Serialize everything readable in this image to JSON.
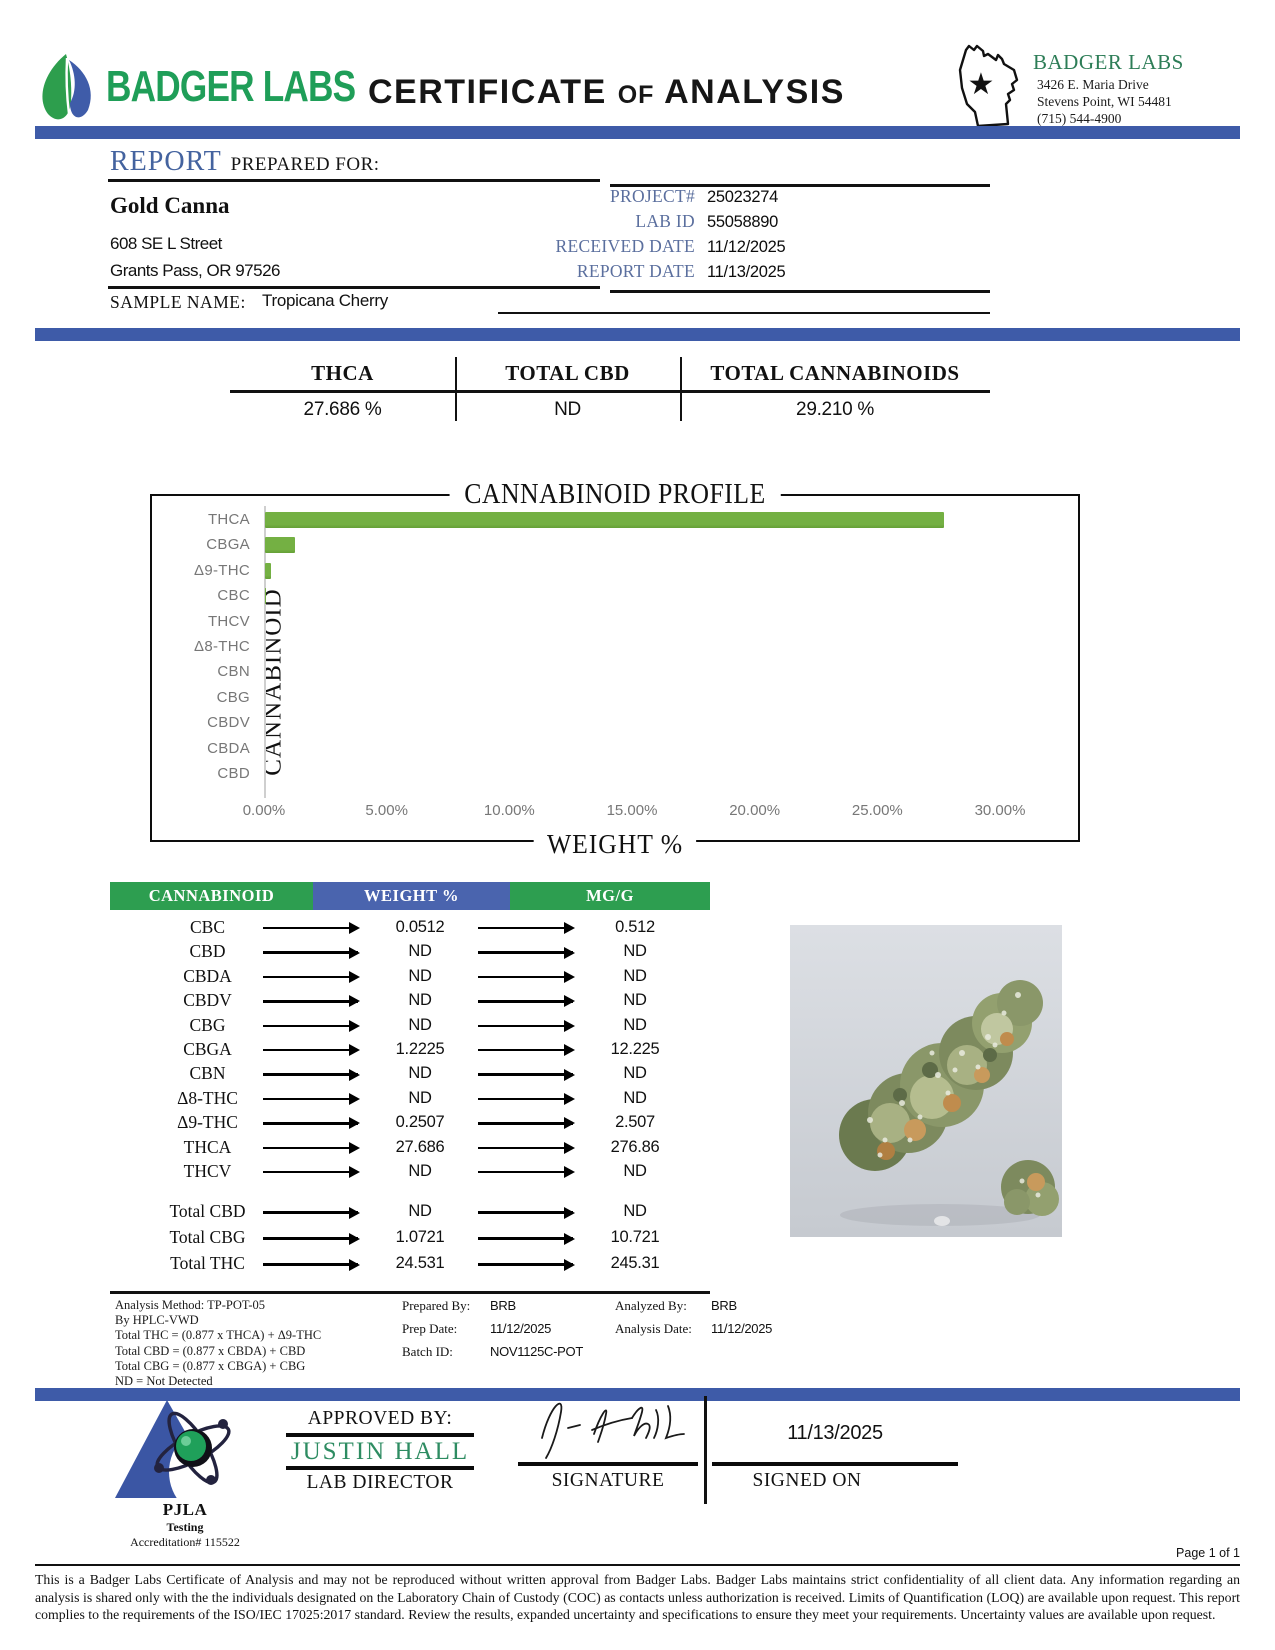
{
  "brand": {
    "logo_text": "BADGER LABS",
    "title_parts": [
      "CERTIFICATE",
      "of",
      "ANALYSIS"
    ],
    "lab_name": "BADGER LABS",
    "lab_address1": "3426 E. Maria Drive",
    "lab_address2": "Stevens Point, WI 54481",
    "lab_phone": "(715) 544-4900"
  },
  "report": {
    "title_word": "REPORT",
    "title_rest": "PREPARED FOR:",
    "client": {
      "name": "Gold Canna",
      "address1": "608 SE L Street",
      "address2": "Grants Pass, OR 97526"
    },
    "meta": [
      {
        "label": "PROJECT#",
        "value": "25023274"
      },
      {
        "label": "LAB ID",
        "value": "55058890"
      },
      {
        "label": "RECEIVED DATE",
        "value": "11/12/2025"
      },
      {
        "label": "REPORT DATE",
        "value": "11/13/2025"
      }
    ],
    "sample_label": "SAMPLE NAME:",
    "sample_name": "Tropicana Cherry"
  },
  "summary": [
    {
      "label": "THCA",
      "value": "27.686 %"
    },
    {
      "label": "TOTAL CBD",
      "value": "ND"
    },
    {
      "label": "TOTAL CANNABINOIDS",
      "value": "29.210 %"
    }
  ],
  "chart_data": {
    "type": "bar",
    "orientation": "horizontal",
    "title": "CANNABINOID PROFILE",
    "xlabel": "WEIGHT %",
    "ylabel": "CANNABINOID",
    "categories": [
      "THCA",
      "CBGA",
      "Δ9-THC",
      "CBC",
      "THCV",
      "Δ8-THC",
      "CBN",
      "CBG",
      "CBDV",
      "CBDA",
      "CBD"
    ],
    "values": [
      27.686,
      1.2225,
      0.2507,
      0.0512,
      0,
      0,
      0,
      0,
      0,
      0,
      0
    ],
    "xlim": [
      0,
      30
    ],
    "xtick_labels": [
      "0.00%",
      "5.00%",
      "10.00%",
      "15.00%",
      "20.00%",
      "25.00%",
      "30.00%"
    ],
    "bar_color": "#74b043",
    "grid": false,
    "legend": false
  },
  "table": {
    "headers": [
      "CANNABINOID",
      "WEIGHT %",
      "MG/G"
    ],
    "header_colors": [
      "#2d9e50",
      "#4a64ae",
      "#2d9e50"
    ],
    "rows": [
      {
        "name": "CBC",
        "weight": "0.0512",
        "mgg": "0.512"
      },
      {
        "name": "CBD",
        "weight": "ND",
        "mgg": "ND"
      },
      {
        "name": "CBDA",
        "weight": "ND",
        "mgg": "ND"
      },
      {
        "name": "CBDV",
        "weight": "ND",
        "mgg": "ND"
      },
      {
        "name": "CBG",
        "weight": "ND",
        "mgg": "ND"
      },
      {
        "name": "CBGA",
        "weight": "1.2225",
        "mgg": "12.225"
      },
      {
        "name": "CBN",
        "weight": "ND",
        "mgg": "ND"
      },
      {
        "name": "Δ8-THC",
        "weight": "ND",
        "mgg": "ND"
      },
      {
        "name": "Δ9-THC",
        "weight": "0.2507",
        "mgg": "2.507"
      },
      {
        "name": "THCA",
        "weight": "27.686",
        "mgg": "276.86"
      },
      {
        "name": "THCV",
        "weight": "ND",
        "mgg": "ND"
      }
    ],
    "totals": [
      {
        "name": "Total CBD",
        "weight": "ND",
        "mgg": "ND"
      },
      {
        "name": "Total CBG",
        "weight": "1.0721",
        "mgg": "10.721"
      },
      {
        "name": "Total THC",
        "weight": "24.531",
        "mgg": "245.31"
      }
    ]
  },
  "notes": {
    "method_lines": [
      "Analysis Method: TP-POT-05",
      "By HPLC-VWD",
      "Total THC = (0.877 x  THCA) + Δ9-THC",
      "Total CBD = (0.877 x  CBDA) + CBD",
      "Total CBG = (0.877 x  CBGA) + CBG",
      "ND = Not Detected"
    ],
    "prepared": [
      {
        "label": "Prepared By:",
        "value": "BRB"
      },
      {
        "label": "Prep Date:",
        "value": "11/12/2025"
      },
      {
        "label": "Batch ID:",
        "value": "NOV1125C-POT"
      }
    ],
    "analyzed": [
      {
        "label": "Analyzed By:",
        "value": "BRB"
      },
      {
        "label": "Analysis Date:",
        "value": "11/12/2025"
      }
    ]
  },
  "approval": {
    "approved_by_label": "APPROVED BY:",
    "approver_name": "JUSTIN HALL",
    "approver_title": "LAB DIRECTOR",
    "signature_label": "SIGNATURE",
    "signed_on_label": "SIGNED ON",
    "signed_on_date": "11/13/2025",
    "accreditor": "PJLA",
    "accreditor_sub": "Testing",
    "accreditation": "Accreditation# 115522"
  },
  "footer": {
    "page": "Page 1 of 1",
    "disclaimer": "This is a Badger Labs Certificate of Analysis and may not be reproduced without written approval from Badger Labs. Badger Labs maintains strict confidentiality of all client data. Any information regarding an analysis is shared only with the the individuals designated on the Laboratory Chain of Custody (COC) as contacts unless authorization is received. Limits of Quantification (LOQ) are available upon request. This report complies to the requirements of the ISO/IEC 17025:2017 standard. Review the results, expanded uncertainty and specifications to ensure they meet your requirements. Uncertainty values are available upon request."
  },
  "colors": {
    "band_blue": "#3e5ba8",
    "brand_green": "#1f9e58",
    "bar_green": "#74b043",
    "table_green": "#2d9e50",
    "table_blue": "#4a64ae",
    "approver_green": "#2e8c62"
  }
}
